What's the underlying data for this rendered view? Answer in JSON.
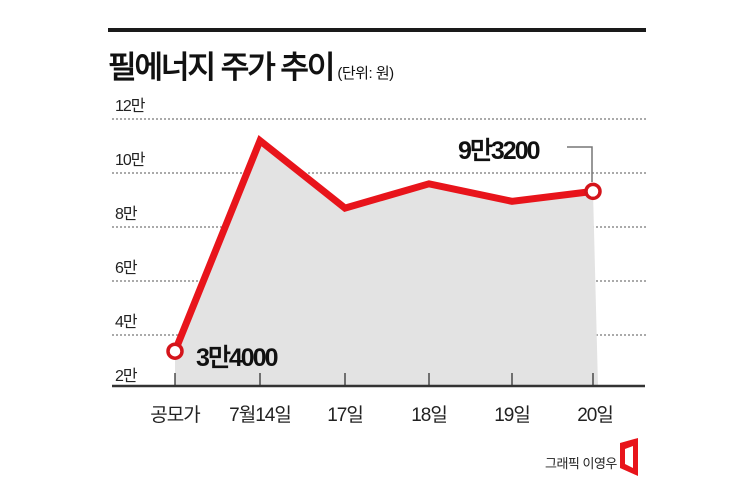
{
  "header": {
    "title": "필에너지 주가 추이",
    "unit": "(단위: 원)"
  },
  "credit": "그래픽 이영우",
  "annotations": {
    "first": "3만4000",
    "last": "9만3200"
  },
  "colors": {
    "line": "#e8141b",
    "fill": "#e3e3e3",
    "grid": "#555555",
    "axis": "#333333"
  },
  "chart_data": {
    "type": "area",
    "title": "필에너지 주가 추이",
    "subtitle": "(단위: 원)",
    "xlabel": "",
    "ylabel": "",
    "categories": [
      "공모가",
      "7월14일",
      "17일",
      "18일",
      "19일",
      "20일"
    ],
    "series": [
      {
        "name": "필에너지 주가",
        "values": [
          34000,
          112000,
          87000,
          96000,
          89500,
          93200
        ]
      }
    ],
    "yticks": [
      "2만",
      "4만",
      "6만",
      "8만",
      "10만",
      "12만"
    ],
    "ytick_values": [
      20000,
      40000,
      60000,
      80000,
      100000,
      120000
    ],
    "ylim": [
      20000,
      120000
    ],
    "grid": true,
    "legend": "none",
    "annotations": [
      {
        "label": "3만4000",
        "category": "공모가",
        "value": 34000
      },
      {
        "label": "9만3200",
        "category": "20일",
        "value": 93200
      }
    ]
  }
}
